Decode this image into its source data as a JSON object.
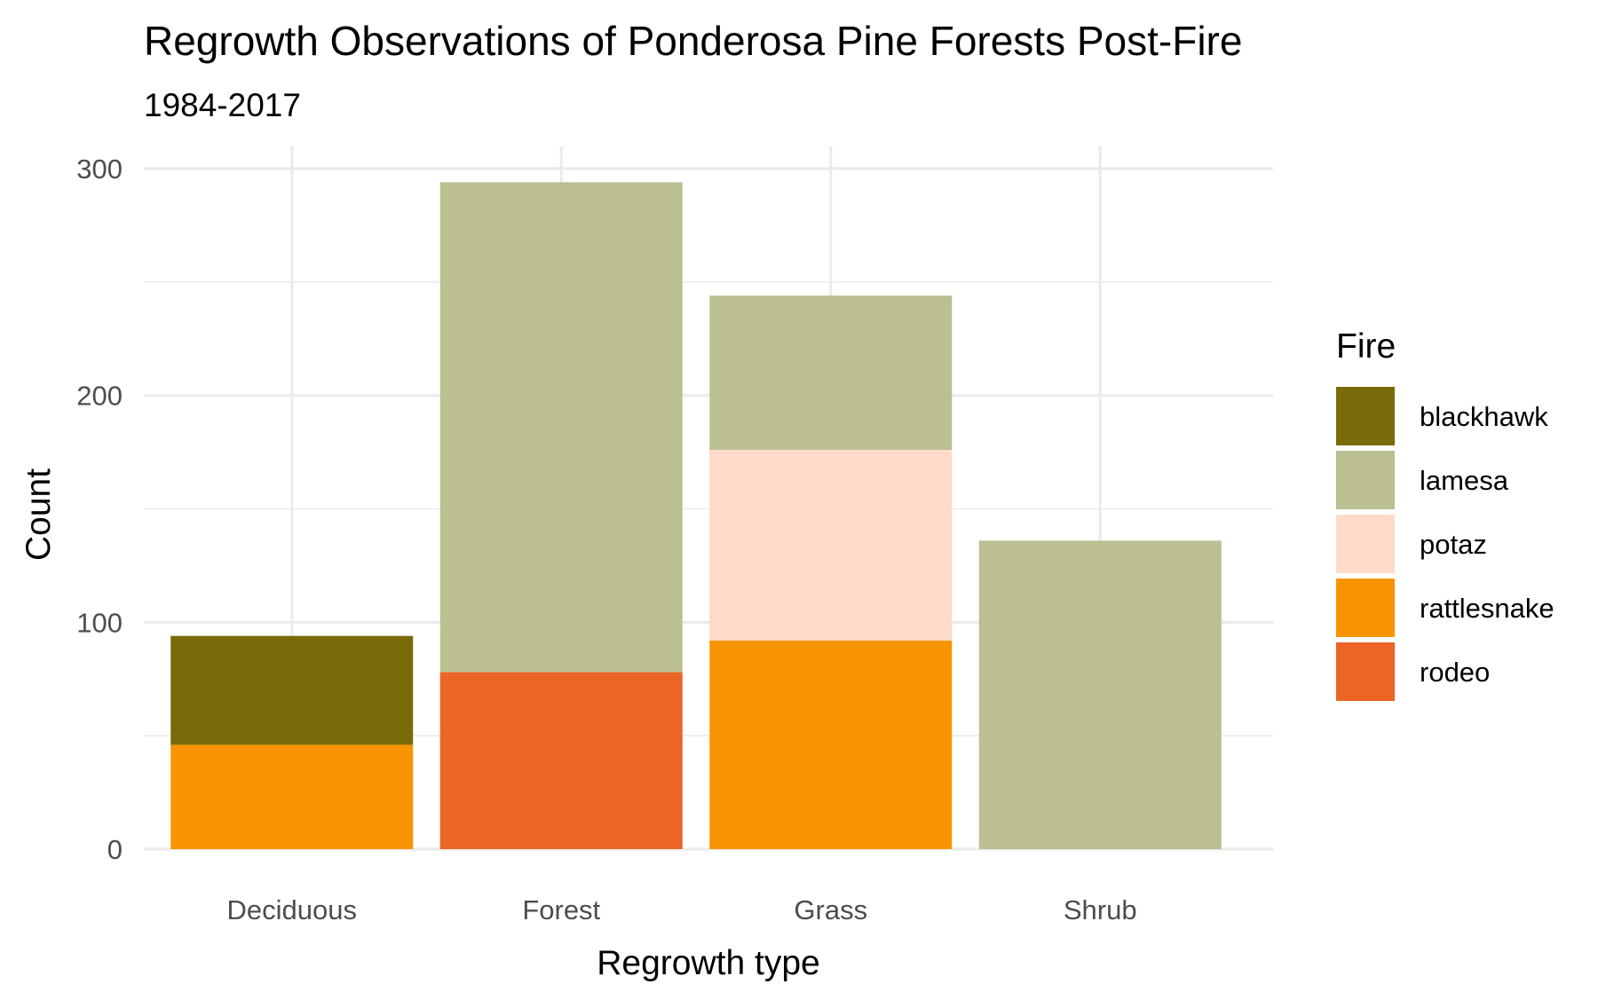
{
  "chart_data": {
    "type": "bar",
    "stacked": true,
    "title": "Regrowth Observations of Ponderosa Pine Forests Post-Fire",
    "subtitle": "1984-2017",
    "xlabel": "Regrowth type",
    "ylabel": "Count",
    "categories": [
      "Deciduous",
      "Forest",
      "Grass",
      "Shrub"
    ],
    "ylim": [
      0,
      310
    ],
    "yticks": [
      0,
      100,
      200,
      300
    ],
    "grid": true,
    "legend": {
      "title": "Fire",
      "position": "right"
    },
    "series": [
      {
        "name": "blackhawk",
        "color": "#7B6A0A",
        "values": [
          48,
          0,
          0,
          0
        ]
      },
      {
        "name": "lamesa",
        "color": "#BBBF91",
        "values": [
          0,
          216,
          68,
          136
        ]
      },
      {
        "name": "potaz",
        "color": "#FDDACA",
        "values": [
          0,
          0,
          84,
          0
        ]
      },
      {
        "name": "rattlesnake",
        "color": "#F89401",
        "values": [
          46,
          0,
          92,
          0
        ]
      },
      {
        "name": "rodeo",
        "color": "#EC6426",
        "values": [
          0,
          78,
          0,
          0
        ]
      }
    ],
    "stack_order_bottom_to_top": [
      "rodeo",
      "rattlesnake",
      "potaz",
      "lamesa",
      "blackhawk"
    ]
  }
}
